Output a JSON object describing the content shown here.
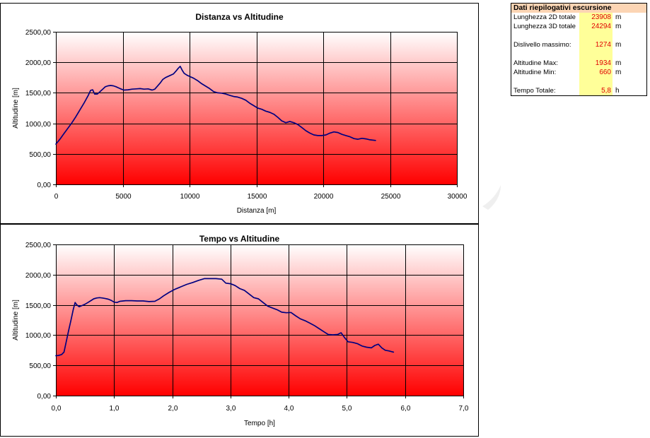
{
  "colors": {
    "series_line": "#000080",
    "plot_gradient_top": "#ffffff",
    "plot_gradient_bottom": "#ff0000",
    "gridline": "#000000",
    "summary_header_bg": "#fcd5b4",
    "summary_value_bg": "#ffff99",
    "summary_value_text": "#e00000"
  },
  "summary": {
    "title": "Dati riepilogativi escursione",
    "rows": [
      {
        "label": "Lunghezza 2D totale",
        "value": "23908",
        "unit": "m"
      },
      {
        "label": "Lunghezza 3D totale",
        "value": "24294",
        "unit": "m"
      },
      {
        "label": "Dislivello massimo:",
        "value": "1274",
        "unit": "m"
      },
      {
        "label": "Altitudine Max:",
        "value": "1934",
        "unit": "m"
      },
      {
        "label": "Altitudine Min:",
        "value": "660",
        "unit": "m"
      },
      {
        "label": "Tempo Totale:",
        "value": "5,8",
        "unit": "h"
      }
    ]
  },
  "chart_data": [
    {
      "type": "line",
      "title": "Distanza vs Altitudine",
      "xlabel": "Distanza [m]",
      "ylabel": "Altitudine [m]",
      "xlim": [
        0,
        30000
      ],
      "ylim": [
        0,
        2500
      ],
      "xticks": [
        0,
        5000,
        10000,
        15000,
        20000,
        25000,
        30000
      ],
      "xtick_labels": [
        "0",
        "5000",
        "10000",
        "15000",
        "20000",
        "25000",
        "30000"
      ],
      "yticks": [
        0,
        500,
        1000,
        1500,
        2000,
        2500
      ],
      "ytick_labels": [
        "0,00",
        "500,00",
        "1000,00",
        "1500,00",
        "2000,00",
        "2500,00"
      ],
      "grid": true,
      "legend": "none",
      "series": [
        {
          "x": [
            0,
            300,
            600,
            900,
            1200,
            1500,
            1800,
            2100,
            2400,
            2600,
            2750,
            2900,
            3100,
            3300,
            3500,
            3700,
            3900,
            4100,
            4300,
            4500,
            4700,
            4900,
            5100,
            5400,
            5700,
            6000,
            6300,
            6600,
            6900,
            7200,
            7400,
            7600,
            7800,
            8000,
            8200,
            8500,
            8800,
            9000,
            9150,
            9300,
            9450,
            9600,
            9800,
            10000,
            10300,
            10600,
            10900,
            11200,
            11500,
            11800,
            12100,
            12400,
            12700,
            13000,
            13300,
            13600,
            13900,
            14200,
            14500,
            14800,
            15100,
            15400,
            15700,
            16000,
            16300,
            16600,
            16900,
            17200,
            17500,
            17800,
            18100,
            18400,
            18700,
            19000,
            19300,
            19600,
            19900,
            20200,
            20500,
            20800,
            21100,
            21400,
            21700,
            22000,
            22300,
            22600,
            22900,
            23200,
            23500,
            23908
          ],
          "y": [
            660,
            740,
            830,
            920,
            1010,
            1110,
            1220,
            1330,
            1450,
            1540,
            1550,
            1480,
            1480,
            1520,
            1560,
            1600,
            1615,
            1620,
            1615,
            1600,
            1580,
            1560,
            1545,
            1550,
            1560,
            1565,
            1570,
            1560,
            1565,
            1545,
            1560,
            1610,
            1660,
            1720,
            1750,
            1780,
            1810,
            1860,
            1900,
            1934,
            1870,
            1820,
            1790,
            1770,
            1740,
            1700,
            1650,
            1610,
            1570,
            1520,
            1500,
            1495,
            1480,
            1460,
            1440,
            1430,
            1410,
            1380,
            1330,
            1290,
            1250,
            1230,
            1200,
            1180,
            1150,
            1100,
            1040,
            1010,
            1030,
            1010,
            980,
            930,
            880,
            840,
            810,
            800,
            800,
            810,
            840,
            860,
            850,
            820,
            800,
            780,
            750,
            740,
            755,
            745,
            730,
            720
          ]
        }
      ]
    },
    {
      "type": "line",
      "title": "Tempo vs Altitudine",
      "xlabel": "Tempo [h]",
      "ylabel": "Altitudine [m]",
      "xlim": [
        0,
        7
      ],
      "ylim": [
        0,
        2500
      ],
      "xticks": [
        0,
        1,
        2,
        3,
        4,
        5,
        6,
        7
      ],
      "xtick_labels": [
        "0,0",
        "1,0",
        "2,0",
        "3,0",
        "4,0",
        "5,0",
        "6,0",
        "7,0"
      ],
      "yticks": [
        0,
        500,
        1000,
        1500,
        2000,
        2500
      ],
      "ytick_labels": [
        "0,00",
        "500,00",
        "1000,00",
        "1500,00",
        "2000,00",
        "2500,00"
      ],
      "grid": true,
      "legend": "none",
      "series": [
        {
          "x": [
            0,
            0.05,
            0.1,
            0.14,
            0.18,
            0.22,
            0.26,
            0.3,
            0.33,
            0.36,
            0.4,
            0.45,
            0.5,
            0.55,
            0.6,
            0.65,
            0.7,
            0.75,
            0.8,
            0.85,
            0.9,
            0.95,
            1.0,
            1.05,
            1.1,
            1.2,
            1.3,
            1.4,
            1.5,
            1.6,
            1.7,
            1.78,
            1.85,
            1.95,
            2.05,
            2.15,
            2.25,
            2.35,
            2.45,
            2.55,
            2.65,
            2.75,
            2.85,
            2.92,
            3.0,
            3.08,
            3.16,
            3.24,
            3.32,
            3.4,
            3.48,
            3.56,
            3.64,
            3.72,
            3.8,
            3.88,
            3.96,
            4.04,
            4.12,
            4.2,
            4.28,
            4.36,
            4.44,
            4.52,
            4.6,
            4.68,
            4.76,
            4.84,
            4.9,
            4.96,
            5.02,
            5.1,
            5.18,
            5.26,
            5.34,
            5.42,
            5.48,
            5.54,
            5.6,
            5.66,
            5.72,
            5.8
          ],
          "y": [
            660,
            665,
            680,
            720,
            900,
            1080,
            1250,
            1430,
            1540,
            1500,
            1470,
            1490,
            1510,
            1540,
            1570,
            1600,
            1615,
            1620,
            1615,
            1605,
            1595,
            1575,
            1545,
            1540,
            1560,
            1570,
            1570,
            1565,
            1565,
            1555,
            1560,
            1600,
            1650,
            1710,
            1760,
            1800,
            1840,
            1870,
            1905,
            1934,
            1934,
            1934,
            1925,
            1860,
            1850,
            1820,
            1770,
            1740,
            1680,
            1620,
            1600,
            1540,
            1480,
            1450,
            1420,
            1380,
            1370,
            1375,
            1320,
            1270,
            1240,
            1200,
            1160,
            1110,
            1060,
            1010,
            1005,
            1010,
            1040,
            960,
            890,
            880,
            860,
            820,
            800,
            790,
            830,
            850,
            790,
            750,
            740,
            720
          ]
        }
      ]
    }
  ]
}
